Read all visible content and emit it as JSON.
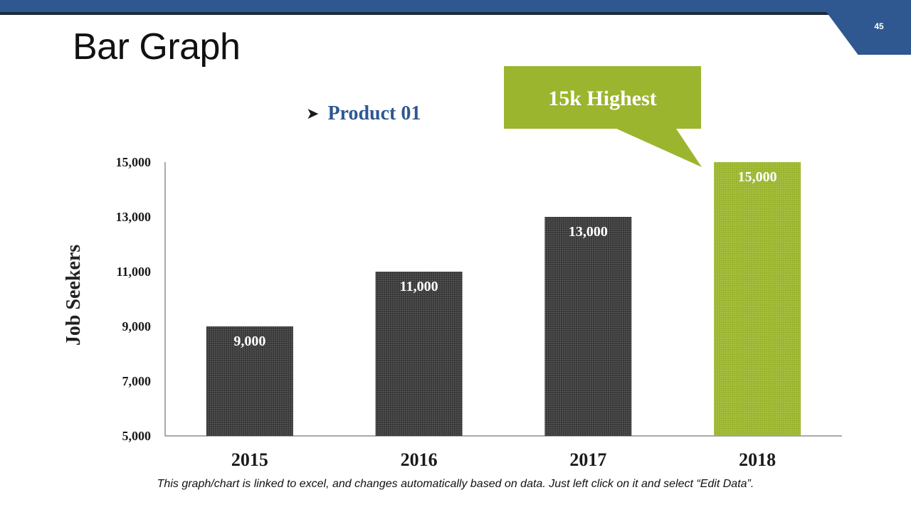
{
  "slide": {
    "title": "Bar Graph",
    "page_number": "45",
    "footnote": "This graph/chart is linked to excel, and changes automatically based on data. Just left click on it and select “Edit Data”."
  },
  "callout": {
    "text": "15k Highest"
  },
  "colors": {
    "accent_blue": "#2f5790",
    "accent_green": "#9bb52f",
    "bar_dark": "#3a3a3a"
  },
  "icons": {
    "legend_bullet": "arrow-bullet-icon"
  },
  "chart_data": {
    "type": "bar",
    "title": "",
    "legend": [
      "Product 01"
    ],
    "legend_position": "top-center",
    "categories": [
      "2015",
      "2016",
      "2017",
      "2018"
    ],
    "series": [
      {
        "name": "Product 01",
        "values": [
          9000,
          11000,
          13000,
          15000
        ]
      }
    ],
    "data_labels": [
      "9,000",
      "11,000",
      "13,000",
      "15,000"
    ],
    "highlight_index": 3,
    "xlabel": "",
    "ylabel": "Job Seekers",
    "ylim": [
      5000,
      15000
    ],
    "yticks": [
      5000,
      7000,
      9000,
      11000,
      13000,
      15000
    ],
    "ytick_labels": [
      "5,000",
      "7,000",
      "9,000",
      "11,000",
      "13,000",
      "15,000"
    ],
    "grid": false
  }
}
